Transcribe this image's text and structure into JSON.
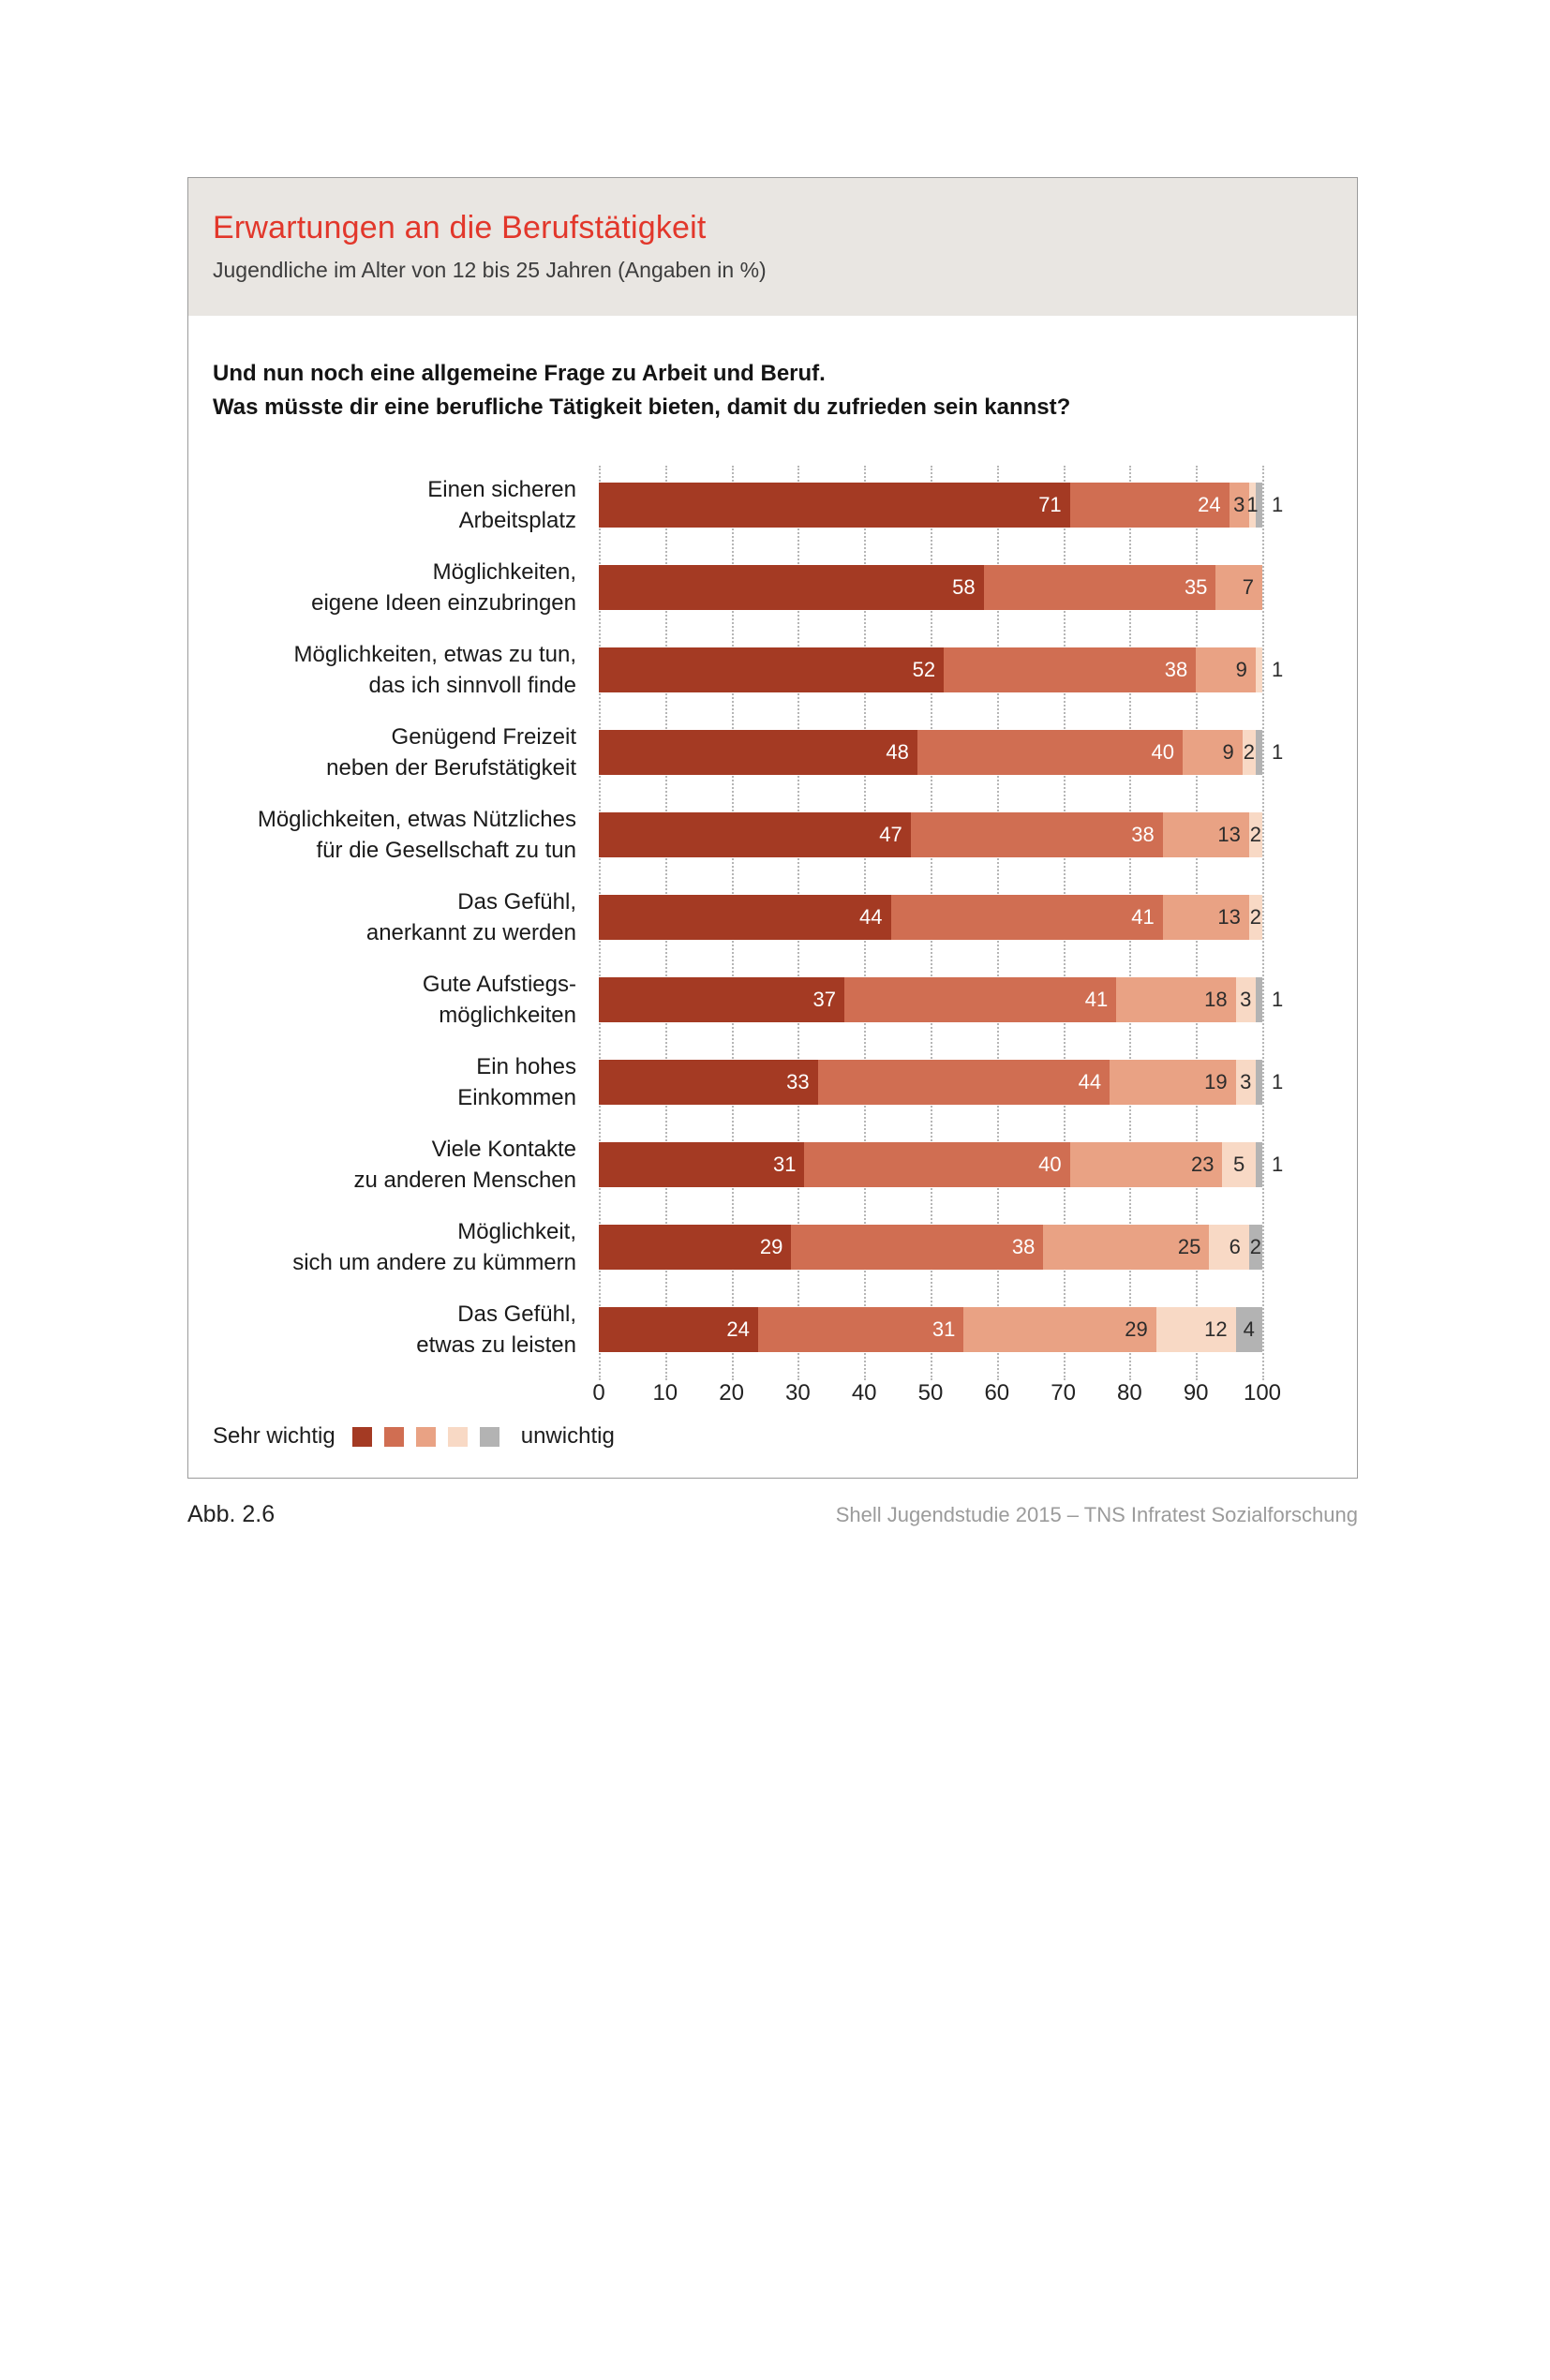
{
  "header": {
    "title": "Erwartungen an die Berufstätigkeit",
    "subtitle": "Jugendliche im Alter von 12 bis 25 Jahren (Angaben in %)"
  },
  "question": {
    "line1": "Und nun noch eine allgemeine Frage zu Arbeit und Beruf.",
    "line2": "Was müsste dir eine berufliche Tätigkeit bieten, damit du zufrieden sein kannst?"
  },
  "chart_data": {
    "type": "bar",
    "orientation": "horizontal",
    "stacked": true,
    "unit": "%",
    "title": "Erwartungen an die Berufstätigkeit",
    "subtitle": "Jugendliche im Alter von 12 bis 25 Jahren (Angaben in %)",
    "note": "Und nun noch eine allgemeine Frage zu Arbeit und Beruf. Was müsste dir eine berufliche Tätigkeit bieten, damit du zufrieden sein kannst?",
    "xlim": [
      0,
      100
    ],
    "x_ticks": [
      0,
      10,
      20,
      30,
      40,
      50,
      60,
      70,
      80,
      90,
      100
    ],
    "grid": "dotted-vertical",
    "scale_labels": {
      "left": "Sehr wichtig",
      "right": "unwichtig"
    },
    "colors": [
      "#a43a23",
      "#d06e52",
      "#e9a284",
      "#f8d9c5",
      "#b3b3b3"
    ],
    "accent_red": "#e2372b",
    "categories": [
      [
        "Einen sicheren",
        "Arbeitsplatz"
      ],
      [
        "Möglichkeiten,",
        "eigene Ideen einzubringen"
      ],
      [
        "Möglichkeiten, etwas zu tun,",
        "das ich sinnvoll finde"
      ],
      [
        "Genügend Freizeit",
        "neben der Berufstätigkeit"
      ],
      [
        "Möglichkeiten, etwas Nützliches",
        "für die Gesellschaft zu tun"
      ],
      [
        "Das Gefühl,",
        "anerkannt zu werden"
      ],
      [
        "Gute Aufstiegs-",
        "möglichkeiten"
      ],
      [
        "Ein hohes",
        "Einkommen"
      ],
      [
        "Viele Kontakte",
        "zu anderen Menschen"
      ],
      [
        "Möglichkeit,",
        "sich um andere zu kümmern"
      ],
      [
        "Das Gefühl,",
        "etwas zu leisten"
      ]
    ],
    "values": [
      [
        71,
        24,
        3,
        1,
        1
      ],
      [
        58,
        35,
        7
      ],
      [
        52,
        38,
        9,
        1
      ],
      [
        48,
        40,
        9,
        2,
        1
      ],
      [
        47,
        38,
        13,
        2
      ],
      [
        44,
        41,
        13,
        2
      ],
      [
        37,
        41,
        18,
        3,
        1
      ],
      [
        33,
        44,
        19,
        3,
        1
      ],
      [
        31,
        40,
        23,
        5,
        1
      ],
      [
        29,
        38,
        25,
        6,
        2
      ],
      [
        24,
        31,
        29,
        12,
        4
      ]
    ]
  },
  "legend": {
    "left_label": "Sehr wichtig",
    "right_label": "unwichtig"
  },
  "footer": {
    "figure_label": "Abb. 2.6",
    "source": "Shell Jugendstudie 2015 – TNS Infratest Sozialforschung"
  }
}
